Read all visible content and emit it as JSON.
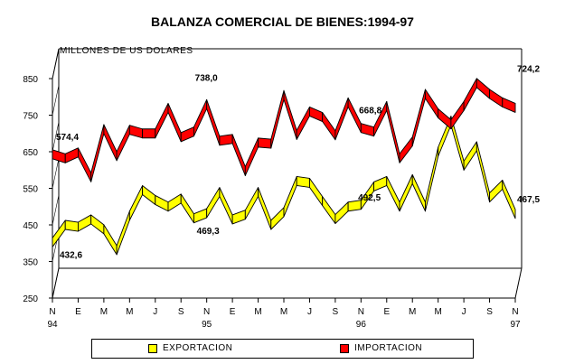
{
  "chart_data": {
    "type": "line",
    "title": "BALANZA COMERCIAL DE BIENES:1994-97",
    "ylabel": "MILLONES DE US DOLARES",
    "ylim": [
      250,
      850
    ],
    "yticks": [
      250,
      350,
      450,
      550,
      650,
      750,
      850
    ],
    "x_tick_letters": [
      "N",
      "E",
      "M",
      "M",
      "J",
      "S",
      "N",
      "E",
      "M",
      "M",
      "J",
      "S",
      "N",
      "E",
      "M",
      "M",
      "J",
      "S",
      "N"
    ],
    "x_year_labels": [
      "94",
      "95",
      "96",
      "97"
    ],
    "grid": false,
    "legend_position": "bottom",
    "series": [
      {
        "name": "EXPORTACION",
        "color": "#ffff00",
        "values": [
          402,
          450,
          445,
          465,
          438,
          381,
          475,
          545,
          518,
          500,
          522,
          468,
          482,
          540,
          465,
          478,
          540,
          450,
          485,
          570,
          565,
          515,
          466,
          500,
          505,
          555,
          570,
          500,
          575,
          500,
          650,
          735,
          612,
          665,
          525,
          560,
          480
        ]
      },
      {
        "name": "IMPORTACION",
        "color": "#ff0000",
        "values": [
          643,
          632,
          648,
          580,
          712,
          638,
          710,
          700,
          700,
          770,
          690,
          705,
          780,
          680,
          685,
          597,
          675,
          672,
          805,
          696,
          760,
          745,
          695,
          785,
          715,
          705,
          775,
          632,
          678,
          808,
          755,
          725,
          775,
          838,
          808,
          785,
          770
        ]
      }
    ],
    "annotations": [
      {
        "text": "574,4",
        "series": "IMPORTACION"
      },
      {
        "text": "738,0",
        "series": "IMPORTACION"
      },
      {
        "text": "668,8",
        "series": "IMPORTACION"
      },
      {
        "text": "724,2",
        "series": "IMPORTACION"
      },
      {
        "text": "432,6",
        "series": "EXPORTACION"
      },
      {
        "text": "469,3",
        "series": "EXPORTACION"
      },
      {
        "text": "492,5",
        "series": "EXPORTACION"
      },
      {
        "text": "467,5",
        "series": "EXPORTACION"
      }
    ]
  },
  "legend": {
    "export_label": "EXPORTACION",
    "import_label": "IMPORTACION"
  }
}
